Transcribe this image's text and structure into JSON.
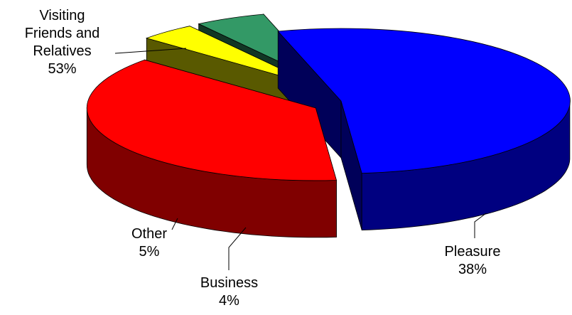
{
  "chart_data": {
    "type": "pie",
    "style": "3d-exploded",
    "slices": [
      {
        "name": "Visiting Friends and Relatives",
        "value": 53,
        "percent_label": "53%",
        "color": "#0000ff",
        "side_color": "#000080"
      },
      {
        "name": "Pleasure",
        "value": 38,
        "percent_label": "38%",
        "color": "#ff0000",
        "side_color": "#800000"
      },
      {
        "name": "Business",
        "value": 4,
        "percent_label": "4%",
        "color": "#ffff00",
        "side_color": "#808000"
      },
      {
        "name": "Other",
        "value": 5,
        "percent_label": "5%",
        "color": "#339966",
        "side_color": "#1e5a3c"
      }
    ],
    "labels": {
      "vfr_line1": "Visiting",
      "vfr_line2": "Friends and",
      "vfr_line3": "Relatives",
      "vfr_pct": "53%",
      "pleasure_name": "Pleasure",
      "pleasure_pct": "38%",
      "business_name": "Business",
      "business_pct": "4%",
      "other_name": "Other",
      "other_pct": "5%"
    }
  }
}
